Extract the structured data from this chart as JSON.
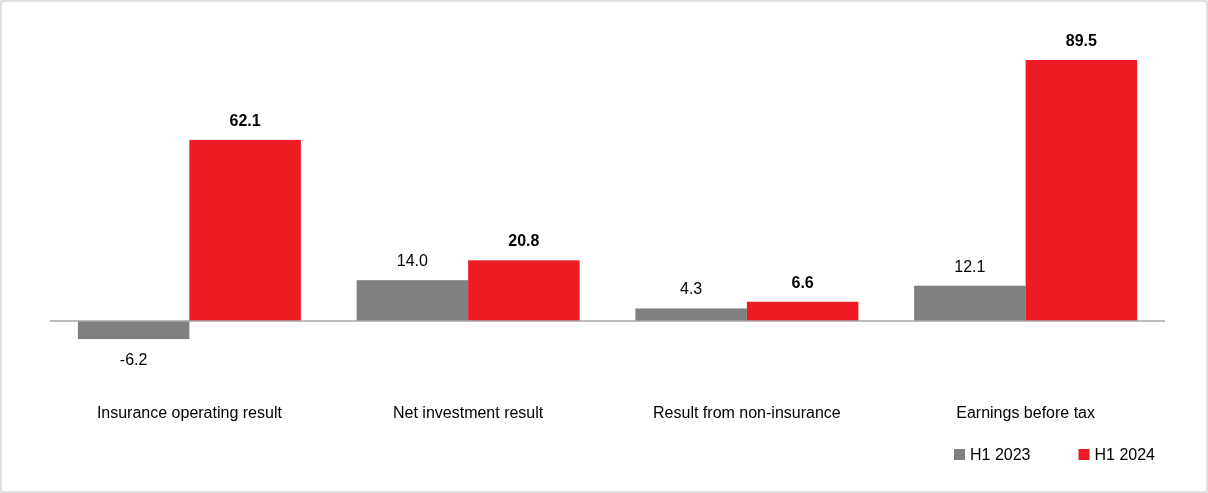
{
  "chart_data": {
    "type": "bar",
    "categories": [
      "Insurance operating result",
      "Net investment result",
      "Result from non-insurance",
      "Earnings before tax"
    ],
    "series": [
      {
        "name": "H1 2023",
        "color": "#808080",
        "values": [
          -6.2,
          14.0,
          4.3,
          12.1
        ],
        "value_labels": [
          "-6.2",
          "14.0",
          "4.3",
          "12.1"
        ]
      },
      {
        "name": "H1 2024",
        "color": "#ed1c24",
        "values": [
          62.1,
          20.8,
          6.6,
          89.5
        ],
        "value_labels": [
          "62.1",
          "20.8",
          "6.6",
          "89.5"
        ]
      }
    ],
    "legend": "bottom right"
  }
}
